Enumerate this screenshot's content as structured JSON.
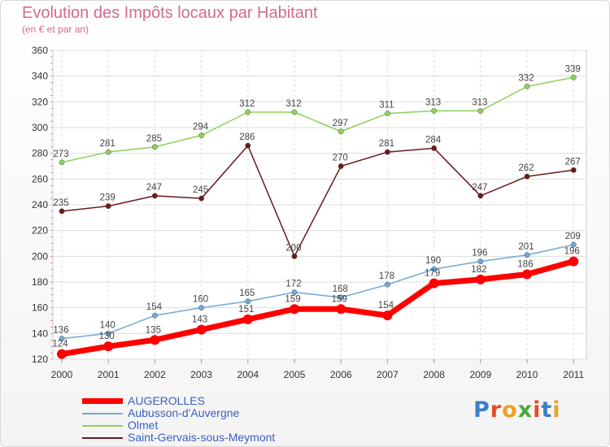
{
  "title": "Evolution des Impôts locaux par Habitant",
  "subtitle": "(en € et par an)",
  "logo": {
    "text": "Proxiti",
    "colors": [
      "#3a7fc8",
      "#e84b2a",
      "#f0a020",
      "#4aa83c",
      "#e84b2a",
      "#3a7fc8",
      "#f0a020"
    ]
  },
  "chart_data": {
    "type": "line",
    "x": [
      "2000",
      "2001",
      "2002",
      "2003",
      "2004",
      "2005",
      "2006",
      "2007",
      "2008",
      "2009",
      "2010",
      "2011"
    ],
    "ylim": [
      120,
      360
    ],
    "yticks": [
      "120",
      "140",
      "160",
      "180",
      "200",
      "220",
      "240",
      "260",
      "280",
      "300",
      "320",
      "340",
      "360"
    ],
    "grid": true,
    "legend_position": "bottom-left",
    "series": [
      {
        "name": "Saint-Gervais-sous-Meymont",
        "color": "#6b1a1a",
        "labels": [
          "235",
          "239",
          "247",
          "245",
          "286",
          "200",
          "270",
          "281",
          "284",
          "247",
          "262",
          "267"
        ],
        "values": [
          235,
          239,
          247,
          245,
          286,
          200,
          270,
          281,
          284,
          247,
          262,
          267
        ]
      },
      {
        "name": "Olmet",
        "color": "#8ed05a",
        "labels": [
          "273",
          "281",
          "285",
          "294",
          "312",
          "312",
          "297",
          "311",
          "313",
          "313",
          "332",
          "339"
        ],
        "values": [
          273,
          281,
          285,
          294,
          312,
          312,
          297,
          311,
          313,
          313,
          332,
          339
        ]
      },
      {
        "name": "Aubusson-d'Auvergne",
        "color": "#70a8d8",
        "labels": [
          "136",
          "140",
          "154",
          "160",
          "165",
          "172",
          "168",
          "178",
          "190",
          "196",
          "201",
          "209"
        ],
        "values": [
          136,
          140,
          154,
          160,
          165,
          172,
          168,
          178,
          190,
          196,
          201,
          209
        ]
      },
      {
        "name": "AUGEROLLES",
        "color": "#ff0000",
        "labels": [
          "124",
          "130",
          "135",
          "143",
          "151",
          "159",
          "159",
          "154",
          "179",
          "182",
          "186",
          "196"
        ],
        "values": [
          124,
          130,
          135,
          143,
          151,
          159,
          159,
          154,
          179,
          182,
          186,
          196
        ]
      }
    ],
    "legend": [
      {
        "name": "AUGEROLLES",
        "color": "#ff0000"
      },
      {
        "name": "Aubusson-d'Auvergne",
        "color": "#70a8d8"
      },
      {
        "name": "Olmet",
        "color": "#8ed05a"
      },
      {
        "name": "Saint-Gervais-sous-Meymont",
        "color": "#6b1a1a"
      }
    ]
  }
}
